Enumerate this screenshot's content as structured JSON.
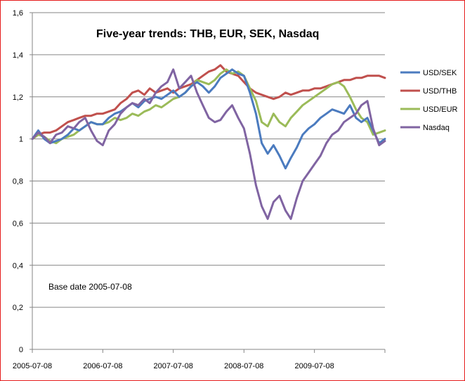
{
  "chart_data": {
    "type": "line",
    "title": "Five-year trends: THB, EUR, SEK, Nasdaq",
    "annotation": "Base date 2005-07-08",
    "xlabel": "",
    "ylabel": "",
    "x_tick_labels": [
      "2005-07-08",
      "2006-07-08",
      "2007-07-08",
      "2008-07-08",
      "2009-07-08"
    ],
    "x_ticks": [
      "2005-07-08",
      "2006-07-08",
      "2007-07-08",
      "2008-07-08",
      "2009-07-08"
    ],
    "x_range": [
      "2005-07-08",
      "2010-07-08"
    ],
    "y_tick_labels": [
      "0",
      "0,2",
      "0,4",
      "0,6",
      "0,8",
      "1",
      "1,2",
      "1,4",
      "1,6"
    ],
    "y_ticks": [
      0,
      0.2,
      0.4,
      0.6,
      0.8,
      1.0,
      1.2,
      1.4,
      1.6
    ],
    "ylim": [
      0,
      1.6
    ],
    "grid": "horizontal",
    "legend_position": "right",
    "series": [
      {
        "name": "USD/SEK",
        "color": "#4b7bbf",
        "x": [
          "2005-07-08",
          "2005-08-08",
          "2005-09-08",
          "2005-10-08",
          "2005-11-08",
          "2005-12-08",
          "2006-01-08",
          "2006-02-08",
          "2006-03-08",
          "2006-04-08",
          "2006-05-08",
          "2006-06-08",
          "2006-07-08",
          "2006-08-08",
          "2006-09-08",
          "2006-10-08",
          "2006-11-08",
          "2006-12-08",
          "2007-01-08",
          "2007-02-08",
          "2007-03-08",
          "2007-04-08",
          "2007-05-08",
          "2007-06-08",
          "2007-07-08",
          "2007-08-08",
          "2007-09-08",
          "2007-10-08",
          "2007-11-08",
          "2007-12-08",
          "2008-01-08",
          "2008-02-08",
          "2008-03-08",
          "2008-04-08",
          "2008-05-08",
          "2008-06-08",
          "2008-07-08",
          "2008-08-08",
          "2008-09-08",
          "2008-10-08",
          "2008-11-08",
          "2008-12-08",
          "2009-01-08",
          "2009-02-08",
          "2009-03-08",
          "2009-04-08",
          "2009-05-08",
          "2009-06-08",
          "2009-07-08",
          "2009-08-08",
          "2009-09-08",
          "2009-10-08",
          "2009-11-08",
          "2009-12-08",
          "2010-01-08",
          "2010-02-08",
          "2010-03-08",
          "2010-04-08",
          "2010-05-08",
          "2010-06-08",
          "2010-07-08"
        ],
        "values": [
          1.0,
          1.04,
          1.0,
          0.98,
          0.99,
          1.0,
          1.02,
          1.05,
          1.04,
          1.06,
          1.08,
          1.07,
          1.07,
          1.1,
          1.12,
          1.13,
          1.15,
          1.17,
          1.15,
          1.18,
          1.19,
          1.2,
          1.19,
          1.21,
          1.23,
          1.2,
          1.22,
          1.25,
          1.27,
          1.25,
          1.22,
          1.25,
          1.29,
          1.31,
          1.33,
          1.31,
          1.3,
          1.22,
          1.12,
          0.98,
          0.93,
          0.97,
          0.92,
          0.86,
          0.91,
          0.96,
          1.02,
          1.05,
          1.07,
          1.1,
          1.12,
          1.14,
          1.13,
          1.12,
          1.16,
          1.1,
          1.08,
          1.1,
          1.04,
          0.98,
          1.0
        ]
      },
      {
        "name": "USD/THB",
        "color": "#c0504d",
        "x": [
          "2005-07-08",
          "2005-08-08",
          "2005-09-08",
          "2005-10-08",
          "2005-11-08",
          "2005-12-08",
          "2006-01-08",
          "2006-02-08",
          "2006-03-08",
          "2006-04-08",
          "2006-05-08",
          "2006-06-08",
          "2006-07-08",
          "2006-08-08",
          "2006-09-08",
          "2006-10-08",
          "2006-11-08",
          "2006-12-08",
          "2007-01-08",
          "2007-02-08",
          "2007-03-08",
          "2007-04-08",
          "2007-05-08",
          "2007-06-08",
          "2007-07-08",
          "2007-08-08",
          "2007-09-08",
          "2007-10-08",
          "2007-11-08",
          "2007-12-08",
          "2008-01-08",
          "2008-02-08",
          "2008-03-08",
          "2008-04-08",
          "2008-05-08",
          "2008-06-08",
          "2008-07-08",
          "2008-08-08",
          "2008-09-08",
          "2008-10-08",
          "2008-11-08",
          "2008-12-08",
          "2009-01-08",
          "2009-02-08",
          "2009-03-08",
          "2009-04-08",
          "2009-05-08",
          "2009-06-08",
          "2009-07-08",
          "2009-08-08",
          "2009-09-08",
          "2009-10-08",
          "2009-11-08",
          "2009-12-08",
          "2010-01-08",
          "2010-02-08",
          "2010-03-08",
          "2010-04-08",
          "2010-05-08",
          "2010-06-08",
          "2010-07-08"
        ],
        "values": [
          1.0,
          1.02,
          1.03,
          1.03,
          1.04,
          1.06,
          1.08,
          1.09,
          1.1,
          1.11,
          1.11,
          1.12,
          1.12,
          1.13,
          1.14,
          1.17,
          1.19,
          1.22,
          1.23,
          1.21,
          1.24,
          1.22,
          1.23,
          1.24,
          1.22,
          1.24,
          1.25,
          1.26,
          1.28,
          1.3,
          1.32,
          1.33,
          1.35,
          1.32,
          1.31,
          1.3,
          1.27,
          1.24,
          1.22,
          1.21,
          1.2,
          1.19,
          1.2,
          1.22,
          1.21,
          1.22,
          1.23,
          1.23,
          1.24,
          1.24,
          1.25,
          1.26,
          1.27,
          1.28,
          1.28,
          1.29,
          1.29,
          1.3,
          1.3,
          1.3,
          1.29
        ]
      },
      {
        "name": "USD/EUR",
        "color": "#9bbb59",
        "x": [
          "2005-07-08",
          "2005-08-08",
          "2005-09-08",
          "2005-10-08",
          "2005-11-08",
          "2005-12-08",
          "2006-01-08",
          "2006-02-08",
          "2006-03-08",
          "2006-04-08",
          "2006-05-08",
          "2006-06-08",
          "2006-07-08",
          "2006-08-08",
          "2006-09-08",
          "2006-10-08",
          "2006-11-08",
          "2006-12-08",
          "2007-01-08",
          "2007-02-08",
          "2007-03-08",
          "2007-04-08",
          "2007-05-08",
          "2007-06-08",
          "2007-07-08",
          "2007-08-08",
          "2007-09-08",
          "2007-10-08",
          "2007-11-08",
          "2007-12-08",
          "2008-01-08",
          "2008-02-08",
          "2008-03-08",
          "2008-04-08",
          "2008-05-08",
          "2008-06-08",
          "2008-07-08",
          "2008-08-08",
          "2008-09-08",
          "2008-10-08",
          "2008-11-08",
          "2008-12-08",
          "2009-01-08",
          "2009-02-08",
          "2009-03-08",
          "2009-04-08",
          "2009-05-08",
          "2009-06-08",
          "2009-07-08",
          "2009-08-08",
          "2009-09-08",
          "2009-10-08",
          "2009-11-08",
          "2009-12-08",
          "2010-01-08",
          "2010-02-08",
          "2010-03-08",
          "2010-04-08",
          "2010-05-08",
          "2010-06-08",
          "2010-07-08"
        ],
        "values": [
          1.0,
          1.02,
          1.01,
          0.99,
          0.98,
          1.0,
          1.01,
          1.02,
          1.04,
          1.06,
          1.08,
          1.07,
          1.07,
          1.08,
          1.1,
          1.09,
          1.1,
          1.12,
          1.11,
          1.13,
          1.14,
          1.16,
          1.15,
          1.17,
          1.19,
          1.2,
          1.22,
          1.25,
          1.28,
          1.27,
          1.26,
          1.28,
          1.31,
          1.33,
          1.31,
          1.32,
          1.3,
          1.24,
          1.18,
          1.08,
          1.06,
          1.12,
          1.08,
          1.06,
          1.1,
          1.13,
          1.16,
          1.18,
          1.2,
          1.22,
          1.24,
          1.26,
          1.27,
          1.25,
          1.2,
          1.14,
          1.1,
          1.08,
          1.02,
          1.03,
          1.04
        ]
      },
      {
        "name": "Nasdaq",
        "color": "#8064a2",
        "x": [
          "2005-07-08",
          "2005-08-08",
          "2005-09-08",
          "2005-10-08",
          "2005-11-08",
          "2005-12-08",
          "2006-01-08",
          "2006-02-08",
          "2006-03-08",
          "2006-04-08",
          "2006-05-08",
          "2006-06-08",
          "2006-07-08",
          "2006-08-08",
          "2006-09-08",
          "2006-10-08",
          "2006-11-08",
          "2006-12-08",
          "2007-01-08",
          "2007-02-08",
          "2007-03-08",
          "2007-04-08",
          "2007-05-08",
          "2007-06-08",
          "2007-07-08",
          "2007-08-08",
          "2007-09-08",
          "2007-10-08",
          "2007-11-08",
          "2007-12-08",
          "2008-01-08",
          "2008-02-08",
          "2008-03-08",
          "2008-04-08",
          "2008-05-08",
          "2008-06-08",
          "2008-07-08",
          "2008-08-08",
          "2008-09-08",
          "2008-10-08",
          "2008-11-08",
          "2008-12-08",
          "2009-01-08",
          "2009-02-08",
          "2009-03-08",
          "2009-04-08",
          "2009-05-08",
          "2009-06-08",
          "2009-07-08",
          "2009-08-08",
          "2009-09-08",
          "2009-10-08",
          "2009-11-08",
          "2009-12-08",
          "2010-01-08",
          "2010-02-08",
          "2010-03-08",
          "2010-04-08",
          "2010-05-08",
          "2010-06-08",
          "2010-07-08"
        ],
        "values": [
          1.0,
          1.03,
          1.01,
          0.98,
          1.02,
          1.03,
          1.06,
          1.05,
          1.08,
          1.1,
          1.04,
          0.99,
          0.97,
          1.04,
          1.07,
          1.12,
          1.15,
          1.17,
          1.16,
          1.19,
          1.17,
          1.22,
          1.25,
          1.27,
          1.33,
          1.24,
          1.27,
          1.3,
          1.22,
          1.16,
          1.1,
          1.08,
          1.09,
          1.13,
          1.16,
          1.1,
          1.05,
          0.93,
          0.78,
          0.68,
          0.62,
          0.7,
          0.73,
          0.66,
          0.62,
          0.72,
          0.8,
          0.84,
          0.88,
          0.92,
          0.98,
          1.02,
          1.04,
          1.08,
          1.1,
          1.12,
          1.16,
          1.18,
          1.05,
          0.97,
          0.99
        ]
      }
    ]
  }
}
